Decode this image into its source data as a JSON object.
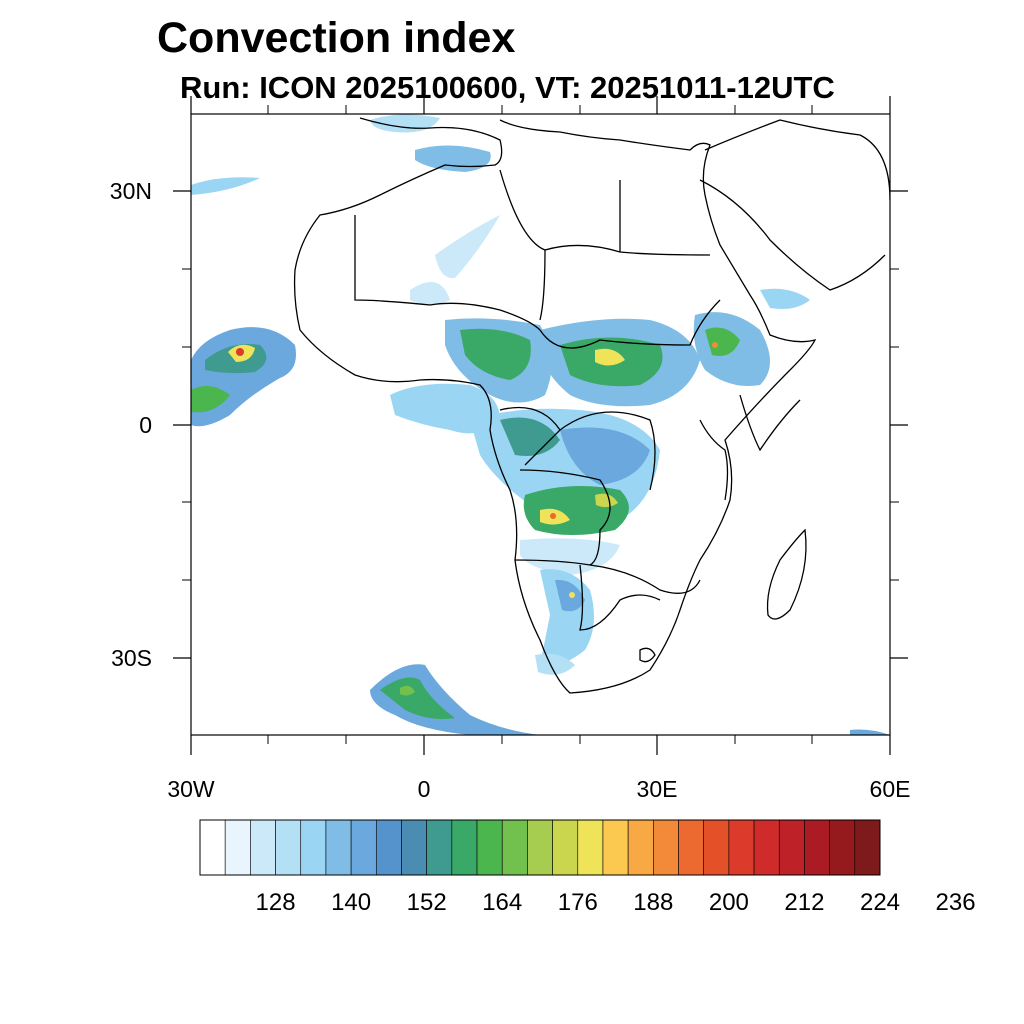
{
  "title": "Convection index",
  "subtitle": "Run: ICON 2025100600,  VT: 20251011-12UTC",
  "axes": {
    "lat_ticks": [
      {
        "value": 30,
        "label": "30N"
      },
      {
        "value": 0,
        "label": "0"
      },
      {
        "value": -30,
        "label": "30S"
      }
    ],
    "lon_ticks": [
      {
        "value": -30,
        "label": "30W"
      },
      {
        "value": 0,
        "label": "0"
      },
      {
        "value": 30,
        "label": "30E"
      },
      {
        "value": 60,
        "label": "60E"
      }
    ],
    "lat_range": [
      -40,
      40
    ],
    "lon_range": [
      -30,
      60
    ]
  },
  "colorbar": {
    "colors": [
      "#ffffff",
      "#e8f5fc",
      "#cbe9f8",
      "#b4e0f6",
      "#9ad6f3",
      "#7fbde6",
      "#6aa8dd",
      "#5493cc",
      "#4b8db2",
      "#3f9b8f",
      "#3aa866",
      "#4bb54e",
      "#72c04d",
      "#a6cd4f",
      "#cbd64f",
      "#efe359",
      "#fbc94f",
      "#f8a943",
      "#f28a39",
      "#ec6a2f",
      "#e45129",
      "#dc3a2a",
      "#d02b2b",
      "#bf2129",
      "#ab1b24",
      "#941a1e",
      "#7e1a1c"
    ],
    "labels": [
      "128",
      "140",
      "152",
      "164",
      "176",
      "188",
      "200",
      "212",
      "224",
      "236"
    ]
  }
}
